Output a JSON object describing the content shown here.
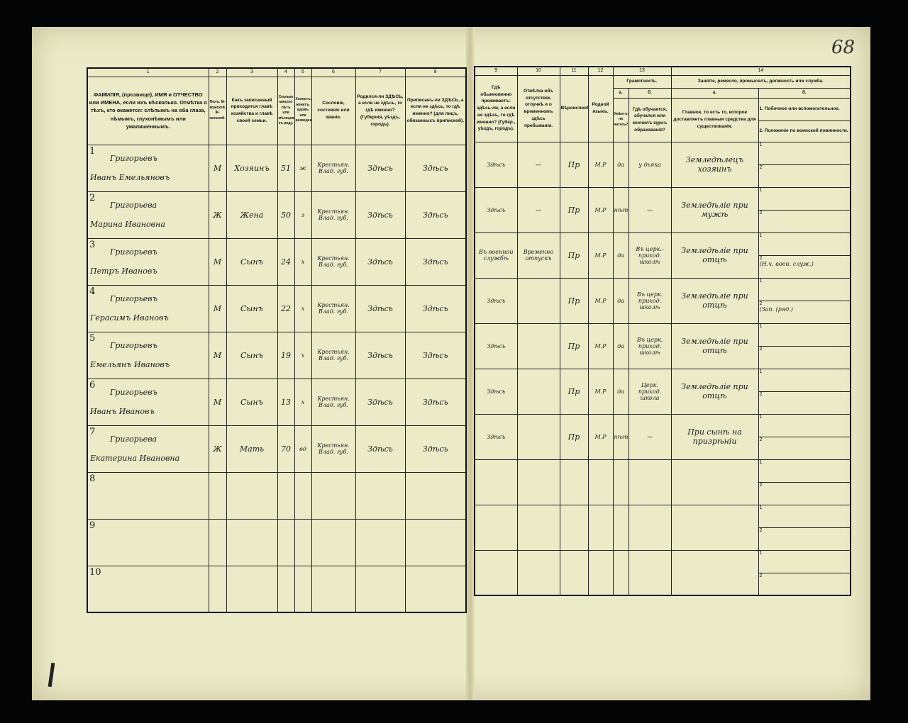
{
  "page_number": "68",
  "left_headers": {
    "numbers": [
      "1",
      "2",
      "3",
      "4",
      "5",
      "6",
      "7",
      "8"
    ],
    "col1": "ФАМИЛІЯ, (прозвище), ИМЯ и ОТЧЕСТВО или ИМЕНА, если ихъ нѣсколько. Отмѣтка о тѣхъ, кто окажется: слѣпымъ на оба глаза, нѣмымъ, глухонѣмымъ или умалишеннымъ.",
    "col2": "Полъ. М-мужской. Ж-женской.",
    "col3": "Какъ записанный приходится главѣ хозяйства и главѣ своей семьи.",
    "col4": "Сколько минуло лѣтъ или мѣсяцевъ къ роду.",
    "col5": "Холостъ, женатъ, вдовъ или разведенъ.",
    "col6": "Сословіе, состояніе или званіе.",
    "col7": "Родился-ли ЗДѢСЬ, а если не здѣсь, то гдѣ именно? (Губернія, уѣздъ, городъ).",
    "col8": "Приписанъ-ли ЗДѢСЬ, а если не здѣсь, то гдѣ именно? (для лицъ, обязанныхъ припиской)."
  },
  "right_headers": {
    "numbers": [
      "9",
      "10",
      "11",
      "12",
      "13",
      "14"
    ],
    "col9": "Гдѣ обыкновенно проживаетъ: здѣсь-ли, а если не здѣсь, то гдѣ именно? (Губер., уѣздъ, городъ).",
    "col10": "Отмѣтка объ отсутствіи, отлучкѣ и о временномъ здѣсь пребываніи.",
    "col11": "Вѣроисповѣданіе.",
    "col12": "Родной языкъ.",
    "col13": "Грамотность.",
    "col13a_letter": "а.",
    "col13b_letter": "б.",
    "col13a": "Умѣетъ-ли читать?",
    "col13b": "Гдѣ обучается, обучался или кончилъ курсъ образованія?",
    "col14": "Занятіе, ремесло, промыселъ, должность или служба.",
    "col14a_letter": "а.",
    "col14b_letter": "б.",
    "col14a": "Главное, то есть то, которое доставляетъ главныя средства для существованія.",
    "col14b_1": "1. Побочное или вспомогательное.",
    "col14b_2": "2. Положеніе по воинской повинности."
  },
  "rows": [
    {
      "n": "1",
      "surname": "Григорьевъ",
      "given": "Иванъ Емельяновъ",
      "sex": "М",
      "relation": "Хозяинъ",
      "age": "51",
      "marital": "ж",
      "estate": "Крестьян. Влад. губ.",
      "born": "Здѣсь",
      "registered": "Здѣсь",
      "residence": "Здѣсь",
      "absence": "—",
      "religion": "Пр",
      "language": "М.Р",
      "literate": "да",
      "education": "у дьяка",
      "occupation": "Земледѣлецъ хозяинъ",
      "side1": "",
      "side2": ""
    },
    {
      "n": "2",
      "surname": "Григорьева",
      "given": "Марина Ивановна",
      "sex": "Ж",
      "relation": "Жена",
      "age": "50",
      "marital": "з",
      "estate": "Крестьян. Влад. губ.",
      "born": "Здѣсь",
      "registered": "Здѣсь",
      "residence": "Здѣсь",
      "absence": "—",
      "religion": "Пр",
      "language": "М.Р",
      "literate": "нѣтъ",
      "education": "—",
      "occupation": "Земледѣліе при мужѣ",
      "side1": "",
      "side2": ""
    },
    {
      "n": "3",
      "surname": "Григорьевъ",
      "given": "Петръ Ивановъ",
      "sex": "М",
      "relation": "Сынъ",
      "age": "24",
      "marital": "х",
      "estate": "Крестьян. Влад. губ.",
      "born": "Здѣсь",
      "registered": "Здѣсь",
      "residence": "Въ военной службѣ",
      "absence": "Временно отпускъ",
      "religion": "Пр",
      "language": "М.Р",
      "literate": "да",
      "education": "Въ церк.-приход. школѣ",
      "occupation": "Земледѣліе при отцѣ",
      "side1": "",
      "side2": "(Н.ч. воен. служ.)"
    },
    {
      "n": "4",
      "surname": "Григорьевъ",
      "given": "Герасимъ Ивановъ",
      "sex": "М",
      "relation": "Сынъ",
      "age": "22",
      "marital": "х",
      "estate": "Крестьян. Влад. губ.",
      "born": "Здѣсь",
      "registered": "Здѣсь",
      "residence": "Здѣсь",
      "absence": "",
      "religion": "Пр",
      "language": "М.Р",
      "literate": "да",
      "education": "Въ церк. приход. школѣ",
      "occupation": "Земледѣліе при отцѣ",
      "side1": "",
      "side2": "(Зап. (ряд.)"
    },
    {
      "n": "5",
      "surname": "Григорьевъ",
      "given": "Емельянъ Ивановъ",
      "sex": "М",
      "relation": "Сынъ",
      "age": "19",
      "marital": "х",
      "estate": "Крестьян. Влад. губ.",
      "born": "Здѣсь",
      "registered": "Здѣсь",
      "residence": "Здѣсь",
      "absence": "",
      "religion": "Пр",
      "language": "М.Р",
      "literate": "да",
      "education": "Въ церк. приход. школѣ",
      "occupation": "Земледѣліе при отцѣ",
      "side1": "",
      "side2": ""
    },
    {
      "n": "6",
      "surname": "Григорьевъ",
      "given": "Иванъ Ивановъ",
      "sex": "М",
      "relation": "Сынъ",
      "age": "13",
      "marital": "х",
      "estate": "Крестьян. Влад. губ.",
      "born": "Здѣсь",
      "registered": "Здѣсь",
      "residence": "Здѣсь",
      "absence": "",
      "religion": "Пр",
      "language": "М.Р",
      "literate": "да",
      "education": "Церк. приход. школа",
      "occupation": "Земледѣліе при отцѣ",
      "side1": "",
      "side2": ""
    },
    {
      "n": "7",
      "surname": "Григорьева",
      "given": "Екатерина Ивановна",
      "sex": "Ж",
      "relation": "Мать",
      "age": "70",
      "marital": "вд",
      "estate": "Крестьян. Влад. губ.",
      "born": "Здѣсь",
      "registered": "Здѣсь",
      "residence": "Здѣсь",
      "absence": "",
      "religion": "Пр",
      "language": "М.Р",
      "literate": "нѣтъ",
      "education": "—",
      "occupation": "При сынѣ на призрѣніи",
      "side1": "",
      "side2": ""
    },
    {
      "n": "8",
      "surname": "",
      "given": "",
      "sex": "",
      "relation": "",
      "age": "",
      "marital": "",
      "estate": "",
      "born": "",
      "registered": "",
      "residence": "",
      "absence": "",
      "religion": "",
      "language": "",
      "literate": "",
      "education": "",
      "occupation": "",
      "side1": "",
      "side2": ""
    },
    {
      "n": "9",
      "surname": "",
      "given": "",
      "sex": "",
      "relation": "",
      "age": "",
      "marital": "",
      "estate": "",
      "born": "",
      "registered": "",
      "residence": "",
      "absence": "",
      "religion": "",
      "language": "",
      "literate": "",
      "education": "",
      "occupation": "",
      "side1": "",
      "side2": ""
    },
    {
      "n": "10",
      "surname": "",
      "given": "",
      "sex": "",
      "relation": "",
      "age": "",
      "marital": "",
      "estate": "",
      "born": "",
      "registered": "",
      "residence": "",
      "absence": "",
      "religion": "",
      "language": "",
      "literate": "",
      "education": "",
      "occupation": "",
      "side1": "",
      "side2": ""
    }
  ],
  "sub_labels": [
    "1",
    "2"
  ]
}
